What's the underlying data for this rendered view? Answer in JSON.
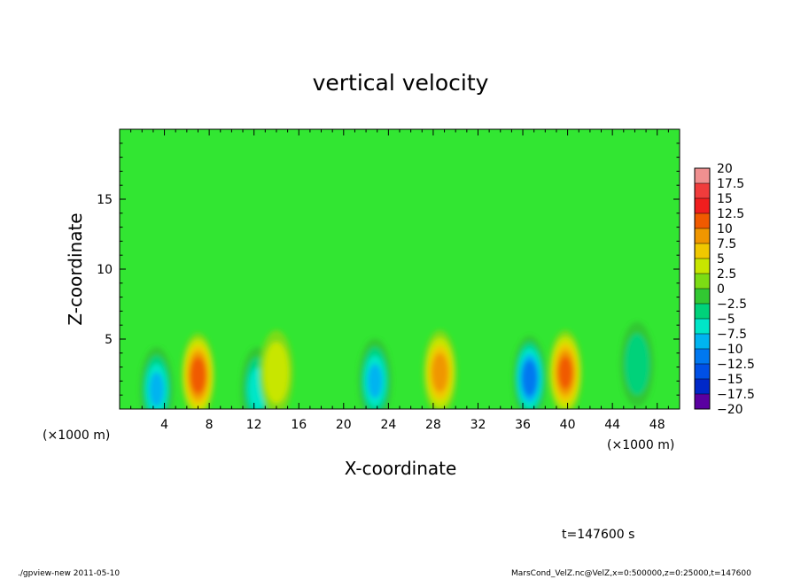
{
  "chart_data": {
    "type": "heatmap",
    "title": "vertical velocity",
    "xlabel": "X-coordinate",
    "ylabel": "Z-coordinate",
    "xunit": "(×1000 m)",
    "xunit_right": "(×1000 m)",
    "xlim": [
      0,
      50
    ],
    "ylim": [
      0,
      20
    ],
    "xticks": [
      4,
      8,
      12,
      16,
      20,
      24,
      28,
      32,
      36,
      40,
      44,
      48
    ],
    "yticks": [
      5,
      10,
      15
    ],
    "colorbar": {
      "levels": [
        20,
        17.5,
        15,
        12.5,
        10,
        7.5,
        5,
        2.5,
        0,
        -2.5,
        -5,
        -7.5,
        -10,
        -12.5,
        -15,
        -17.5,
        -20
      ],
      "level_labels": [
        "20",
        "17.5",
        "15",
        "12.5",
        "10",
        "7.5",
        "5",
        "2.5",
        "0",
        "−2.5",
        "−5",
        "−7.5",
        "−10",
        "−12.5",
        "−15",
        "−17.5",
        "−20"
      ],
      "colors": [
        "#f09090",
        "#f03c3c",
        "#f01e1e",
        "#f05a00",
        "#f09600",
        "#f0c800",
        "#c8e600",
        "#7cdc14",
        "#32c832",
        "#00d27a",
        "#00e6c8",
        "#00b4f0",
        "#0078f0",
        "#0050e6",
        "#0028c8",
        "#5a00a0"
      ]
    },
    "background_color": "#32e632",
    "features": [
      {
        "x": 3.3,
        "z": 1.4,
        "value": -8
      },
      {
        "x": 7.0,
        "z": 2.4,
        "value": 12
      },
      {
        "x": 12.3,
        "z": 1.4,
        "value": -6
      },
      {
        "x": 14.0,
        "z": 2.6,
        "value": 5
      },
      {
        "x": 22.8,
        "z": 2.0,
        "value": -8
      },
      {
        "x": 28.6,
        "z": 2.6,
        "value": 9
      },
      {
        "x": 36.6,
        "z": 2.2,
        "value": -12
      },
      {
        "x": 39.8,
        "z": 2.6,
        "value": 11
      },
      {
        "x": 46.2,
        "z": 3.2,
        "value": -5
      }
    ],
    "annotation": "t=147600  s"
  },
  "footer": {
    "left": "./gpview-new   2011-05-10",
    "right": "MarsCond_VelZ.nc@VelZ,x=0:500000,z=0:25000,t=147600"
  }
}
